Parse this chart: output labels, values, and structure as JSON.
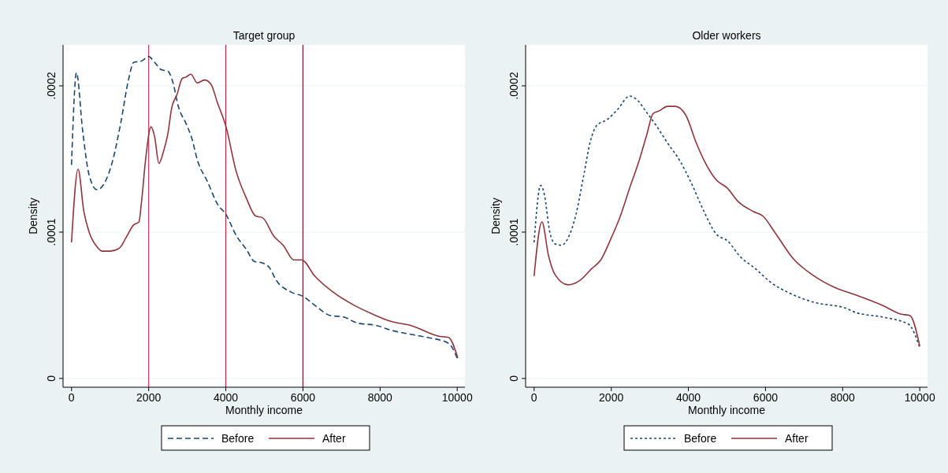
{
  "chart_data": [
    {
      "type": "line",
      "title": "Target group",
      "xlabel": "Monthly income",
      "ylabel": "Density",
      "xlim": [
        -220,
        10200
      ],
      "ylim": [
        -6e-06,
        0.000228
      ],
      "xticks": [
        0,
        2000,
        4000,
        6000,
        8000,
        10000
      ],
      "yticks": [
        {
          "value": 0,
          "label": "0"
        },
        {
          "value": 0.0001,
          "label": ".0001"
        },
        {
          "value": 0.0002,
          "label": ".0002"
        }
      ],
      "grid": "y",
      "legend": "bottom",
      "ref_lines": [
        {
          "axis": "x",
          "value": 2000,
          "color": "#d0406a"
        },
        {
          "axis": "x",
          "value": 4000,
          "color": "#b0304a"
        },
        {
          "axis": "x",
          "value": 6000,
          "color": "#802030"
        }
      ],
      "series": [
        {
          "name": "Before",
          "color": "#1a476f",
          "line_style": "dashed",
          "x": [
            0,
            129,
            286,
            456,
            660,
            864,
            1068,
            1272,
            1476,
            1612,
            1816,
            2000,
            2156,
            2326,
            2496,
            2632,
            2768,
            2972,
            3108,
            3278,
            3516,
            3788,
            4006,
            4264,
            4536,
            4740,
            4944,
            5150,
            5286,
            5694,
            6007,
            6306,
            6714,
            7054,
            7395,
            7939,
            8279,
            8823,
            9231,
            9776,
            10014
          ],
          "values": [
            0.000146,
            0.000209,
            0.00017,
            0.000139,
            0.000129,
            0.000134,
            0.000149,
            0.000174,
            0.000204,
            0.000216,
            0.000217,
            0.00022,
            0.000216,
            0.000211,
            0.00021,
            0.000202,
            0.000186,
            0.000174,
            0.000165,
            0.000148,
            0.000135,
            0.000119,
            0.000112,
            9.8e-05,
            8.8e-05,
            8e-05,
            7.9e-05,
            7.5e-05,
            6.8e-05,
            5.9e-05,
            5.6e-05,
            5e-05,
            4.3e-05,
            4.2e-05,
            3.8e-05,
            3.6e-05,
            3.3e-05,
            3e-05,
            2.8e-05,
            2.4e-05,
            1.3e-05
          ]
        },
        {
          "name": "After",
          "color": "#90353b",
          "line_style": "solid",
          "x": [
            0,
            170,
            320,
            456,
            660,
            796,
            1000,
            1238,
            1408,
            1612,
            1748,
            1816,
            1918,
            2061,
            2156,
            2265,
            2394,
            2496,
            2598,
            2734,
            2870,
            2972,
            3094,
            3258,
            3448,
            3618,
            3788,
            4006,
            4264,
            4536,
            4774,
            4946,
            5252,
            5490,
            5762,
            5966,
            6306,
            6782,
            7327,
            7803,
            8279,
            8823,
            9503,
            9776,
            10014
          ],
          "values": [
            9.3e-05,
            0.000143,
            0.000114,
            0.0001,
            9e-05,
            8.7e-05,
            8.7e-05,
            8.9e-05,
            9.6e-05,
            0.000105,
            0.000107,
            0.000121,
            0.000149,
            0.000172,
            0.000165,
            0.000147,
            0.000156,
            0.000167,
            0.000185,
            0.000194,
            0.000205,
            0.000206,
            0.000208,
            0.000202,
            0.000204,
            0.000201,
            0.000188,
            0.000172,
            0.000142,
            0.000123,
            0.000111,
            0.00011,
            9.7e-05,
            9.1e-05,
            8.1e-05,
            8.1e-05,
            7e-05,
            5.9e-05,
            5e-05,
            4.4e-05,
            3.9e-05,
            3.6e-05,
            2.9e-05,
            2.8e-05,
            1.4e-05
          ]
        }
      ]
    },
    {
      "type": "line",
      "title": "Older workers",
      "xlabel": "Monthly income",
      "ylabel": "Density",
      "xlim": [
        -220,
        10200
      ],
      "ylim": [
        -6e-06,
        0.000228
      ],
      "xticks": [
        0,
        2000,
        4000,
        6000,
        8000,
        10000
      ],
      "yticks": [
        {
          "value": 0,
          "label": "0"
        },
        {
          "value": 0.0001,
          "label": ".0001"
        },
        {
          "value": 0.0002,
          "label": ".0002"
        }
      ],
      "grid": "y",
      "legend": "bottom",
      "series": [
        {
          "name": "Before",
          "color": "#1a476f",
          "line_style": "dotted",
          "x": [
            0,
            170,
            271,
            407,
            542,
            712,
            881,
            1085,
            1288,
            1458,
            1627,
            1898,
            2170,
            2475,
            2644,
            2915,
            3187,
            3458,
            3797,
            4068,
            4407,
            4712,
            5017,
            5353,
            5694,
            6170,
            6647,
            7260,
            8077,
            8349,
            9030,
            9711,
            10000
          ],
          "values": [
            9.3e-05,
            0.000132,
            0.000125,
            0.0001,
            9.2e-05,
            9.1e-05,
            9.6e-05,
            0.000112,
            0.000139,
            0.000162,
            0.000173,
            0.000177,
            0.000184,
            0.000193,
            0.000191,
            0.000182,
            0.000172,
            0.000161,
            0.000148,
            0.000134,
            0.000114,
            9.9e-05,
            9.4e-05,
            8.3e-05,
            7.6e-05,
            6.5e-05,
            5.8e-05,
            5.2e-05,
            4.8e-05,
            4.5e-05,
            4.2e-05,
            3.7e-05,
            2.1e-05
          ]
        },
        {
          "name": "After",
          "color": "#90353b",
          "line_style": "solid",
          "x": [
            0,
            203,
            373,
            542,
            881,
            1187,
            1492,
            1729,
            2000,
            2237,
            2475,
            2712,
            2915,
            3085,
            3254,
            3458,
            3661,
            3932,
            4204,
            4407,
            4712,
            5013,
            5285,
            5694,
            5932,
            6238,
            6715,
            7260,
            7805,
            8349,
            9030,
            9507,
            9746,
            10000
          ],
          "values": [
            7e-05,
            0.000107,
            8.4e-05,
            7.1e-05,
            6.4e-05,
            6.7e-05,
            7.5e-05,
            8.1e-05,
            9.6e-05,
            0.000111,
            0.00013,
            0.000148,
            0.000166,
            0.000181,
            0.000183,
            0.000186,
            0.000186,
            0.00018,
            0.000161,
            0.000149,
            0.000136,
            0.00013,
            0.000121,
            0.000114,
            0.000111,
            0.0001,
            8.2e-05,
            7e-05,
            6.2e-05,
            5.7e-05,
            5e-05,
            4.4e-05,
            4.3e-05,
            2.2e-05
          ]
        }
      ]
    }
  ]
}
